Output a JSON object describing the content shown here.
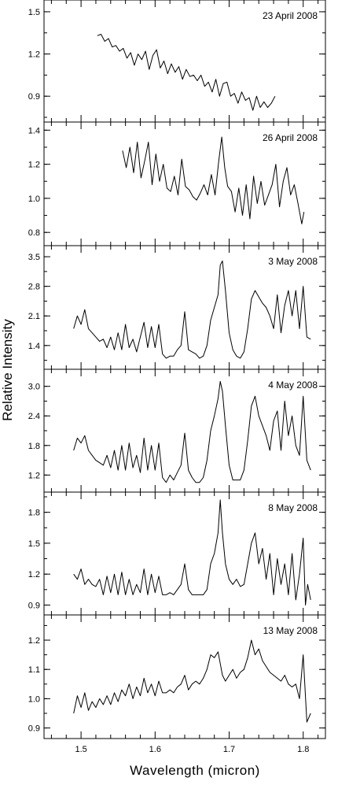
{
  "chart_data": {
    "type": "line",
    "ylabel": "Relative Intensity",
    "xlabel": "Wavelength (micron)",
    "xlim": [
      1.45,
      1.83
    ],
    "x_ticks": [
      "1.5",
      "1.6",
      "1.7",
      "1.8"
    ],
    "x_tick_values": [
      1.5,
      1.6,
      1.7,
      1.8
    ],
    "line_color": "#000000",
    "grid": false,
    "panels": [
      {
        "date": "23 April 2008",
        "ylim": [
          0.75,
          1.55
        ],
        "y_ticks": [
          "0.9",
          "1.2",
          "1.5"
        ],
        "y_tick_values": [
          0.9,
          1.2,
          1.5
        ],
        "x": [
          1.522,
          1.527,
          1.532,
          1.537,
          1.542,
          1.547,
          1.552,
          1.557,
          1.562,
          1.567,
          1.572,
          1.577,
          1.582,
          1.587,
          1.592,
          1.597,
          1.602,
          1.607,
          1.612,
          1.617,
          1.622,
          1.627,
          1.632,
          1.637,
          1.642,
          1.647,
          1.652,
          1.657,
          1.662,
          1.667,
          1.672,
          1.677,
          1.682,
          1.687,
          1.692,
          1.697,
          1.702,
          1.707,
          1.712,
          1.717,
          1.722,
          1.727,
          1.732,
          1.737,
          1.742,
          1.747,
          1.752,
          1.757,
          1.762
        ],
        "y": [
          1.33,
          1.34,
          1.29,
          1.31,
          1.25,
          1.26,
          1.22,
          1.24,
          1.17,
          1.21,
          1.12,
          1.2,
          1.16,
          1.22,
          1.09,
          1.19,
          1.23,
          1.1,
          1.15,
          1.06,
          1.13,
          1.07,
          1.11,
          1.02,
          1.09,
          1.04,
          1.05,
          1.01,
          1.05,
          0.97,
          1.0,
          0.93,
          1.02,
          0.9,
          0.99,
          1.0,
          0.9,
          0.92,
          0.85,
          0.93,
          0.87,
          0.89,
          0.8,
          0.9,
          0.82,
          0.86,
          0.82,
          0.85,
          0.9
        ]
      },
      {
        "date": "26 April 2008",
        "ylim": [
          0.75,
          1.42
        ],
        "y_ticks": [
          "0.8",
          "1.0",
          "1.2",
          "1.4"
        ],
        "y_tick_values": [
          0.8,
          1.0,
          1.2,
          1.4
        ],
        "x": [
          1.556,
          1.561,
          1.566,
          1.571,
          1.576,
          1.581,
          1.586,
          1.591,
          1.596,
          1.601,
          1.606,
          1.611,
          1.616,
          1.621,
          1.626,
          1.631,
          1.636,
          1.641,
          1.646,
          1.651,
          1.656,
          1.661,
          1.666,
          1.671,
          1.676,
          1.681,
          1.686,
          1.69,
          1.694,
          1.698,
          1.703,
          1.708,
          1.713,
          1.718,
          1.723,
          1.728,
          1.733,
          1.738,
          1.743,
          1.748,
          1.753,
          1.758,
          1.763,
          1.768,
          1.773,
          1.778,
          1.783,
          1.788,
          1.793,
          1.798,
          1.801
        ],
        "y": [
          1.28,
          1.18,
          1.3,
          1.15,
          1.33,
          1.12,
          1.22,
          1.33,
          1.08,
          1.26,
          1.1,
          1.2,
          1.06,
          1.04,
          1.13,
          1.02,
          1.23,
          1.07,
          1.05,
          1.01,
          0.99,
          1.03,
          1.08,
          1.02,
          1.14,
          1.02,
          1.22,
          1.36,
          1.18,
          1.07,
          1.04,
          0.92,
          1.06,
          0.9,
          1.08,
          0.88,
          1.13,
          0.97,
          1.1,
          0.96,
          1.02,
          1.08,
          1.2,
          0.95,
          1.1,
          1.18,
          1.02,
          1.08,
          0.97,
          0.85,
          0.92
        ]
      },
      {
        "date": "3 May 2008",
        "ylim": [
          0.95,
          3.65
        ],
        "y_ticks": [
          "1.4",
          "2.1",
          "2.8",
          "3.5"
        ],
        "y_tick_values": [
          1.4,
          2.1,
          2.8,
          3.5
        ],
        "x": [
          1.49,
          1.495,
          1.5,
          1.505,
          1.51,
          1.515,
          1.52,
          1.525,
          1.53,
          1.535,
          1.54,
          1.545,
          1.55,
          1.555,
          1.56,
          1.565,
          1.57,
          1.575,
          1.58,
          1.585,
          1.59,
          1.595,
          1.6,
          1.605,
          1.61,
          1.615,
          1.62,
          1.625,
          1.63,
          1.635,
          1.64,
          1.645,
          1.65,
          1.655,
          1.66,
          1.665,
          1.67,
          1.675,
          1.68,
          1.685,
          1.688,
          1.691,
          1.695,
          1.7,
          1.705,
          1.71,
          1.715,
          1.72,
          1.725,
          1.73,
          1.735,
          1.74,
          1.745,
          1.75,
          1.755,
          1.76,
          1.765,
          1.77,
          1.775,
          1.78,
          1.785,
          1.79,
          1.795,
          1.8,
          1.805,
          1.81
        ],
        "y": [
          1.8,
          2.1,
          1.9,
          2.25,
          1.8,
          1.7,
          1.6,
          1.5,
          1.55,
          1.35,
          1.6,
          1.3,
          1.7,
          1.3,
          1.9,
          1.35,
          1.55,
          1.25,
          1.6,
          1.95,
          1.35,
          1.85,
          1.35,
          1.9,
          1.2,
          1.1,
          1.15,
          1.15,
          1.3,
          1.4,
          2.2,
          1.3,
          1.25,
          1.2,
          1.1,
          1.15,
          1.4,
          2.0,
          2.3,
          2.6,
          3.3,
          3.4,
          2.7,
          1.7,
          1.3,
          1.15,
          1.1,
          1.25,
          1.8,
          2.5,
          2.7,
          2.55,
          2.4,
          2.3,
          2.1,
          1.8,
          2.6,
          1.7,
          2.35,
          2.7,
          2.1,
          2.7,
          1.8,
          2.8,
          1.6,
          1.55
        ]
      },
      {
        "date": "4 May 2008",
        "ylim": [
          0.95,
          3.25
        ],
        "y_ticks": [
          "1.2",
          "1.8",
          "2.4",
          "3.0"
        ],
        "y_tick_values": [
          1.2,
          1.8,
          2.4,
          3.0
        ],
        "x": [
          1.49,
          1.495,
          1.5,
          1.505,
          1.51,
          1.515,
          1.52,
          1.525,
          1.53,
          1.535,
          1.54,
          1.545,
          1.55,
          1.555,
          1.56,
          1.565,
          1.57,
          1.575,
          1.58,
          1.585,
          1.59,
          1.595,
          1.6,
          1.605,
          1.61,
          1.615,
          1.62,
          1.625,
          1.63,
          1.635,
          1.64,
          1.645,
          1.65,
          1.655,
          1.66,
          1.665,
          1.67,
          1.675,
          1.68,
          1.685,
          1.688,
          1.691,
          1.695,
          1.7,
          1.705,
          1.71,
          1.715,
          1.72,
          1.725,
          1.73,
          1.735,
          1.74,
          1.745,
          1.75,
          1.755,
          1.76,
          1.765,
          1.77,
          1.775,
          1.78,
          1.785,
          1.79,
          1.795,
          1.8,
          1.805,
          1.81
        ],
        "y": [
          1.7,
          1.95,
          1.85,
          2.0,
          1.7,
          1.6,
          1.5,
          1.45,
          1.4,
          1.6,
          1.35,
          1.7,
          1.3,
          1.8,
          1.3,
          1.85,
          1.35,
          1.6,
          1.25,
          1.95,
          1.3,
          1.8,
          1.3,
          1.85,
          1.15,
          1.05,
          1.2,
          1.1,
          1.25,
          1.4,
          2.05,
          1.3,
          1.15,
          1.05,
          1.05,
          1.15,
          1.5,
          2.1,
          2.4,
          2.75,
          3.1,
          2.9,
          2.2,
          1.4,
          1.1,
          1.1,
          1.1,
          1.3,
          1.9,
          2.6,
          2.8,
          2.4,
          2.2,
          2.0,
          1.7,
          2.3,
          2.5,
          1.7,
          2.7,
          2.0,
          2.4,
          1.8,
          1.6,
          2.8,
          1.5,
          1.3
        ]
      },
      {
        "date": "8 May 2008",
        "ylim": [
          0.85,
          1.95
        ],
        "y_ticks": [
          "0.9",
          "1.2",
          "1.5",
          "1.8"
        ],
        "y_tick_values": [
          0.9,
          1.2,
          1.5,
          1.8
        ],
        "x": [
          1.49,
          1.495,
          1.5,
          1.505,
          1.51,
          1.515,
          1.52,
          1.525,
          1.53,
          1.535,
          1.54,
          1.545,
          1.55,
          1.555,
          1.56,
          1.565,
          1.57,
          1.575,
          1.58,
          1.585,
          1.59,
          1.595,
          1.6,
          1.605,
          1.61,
          1.615,
          1.62,
          1.625,
          1.63,
          1.635,
          1.64,
          1.645,
          1.65,
          1.655,
          1.66,
          1.665,
          1.67,
          1.675,
          1.68,
          1.685,
          1.688,
          1.691,
          1.695,
          1.7,
          1.705,
          1.71,
          1.715,
          1.72,
          1.725,
          1.73,
          1.735,
          1.74,
          1.745,
          1.75,
          1.755,
          1.76,
          1.765,
          1.77,
          1.775,
          1.78,
          1.785,
          1.79,
          1.795,
          1.8,
          1.803,
          1.806,
          1.81
        ],
        "y": [
          1.2,
          1.15,
          1.25,
          1.1,
          1.15,
          1.1,
          1.08,
          1.15,
          1.0,
          1.18,
          1.02,
          1.2,
          1.0,
          1.22,
          1.0,
          1.15,
          1.0,
          1.1,
          1.02,
          1.25,
          1.0,
          1.2,
          1.02,
          1.18,
          1.0,
          1.0,
          1.02,
          1.0,
          1.05,
          1.1,
          1.3,
          1.05,
          1.0,
          1.0,
          1.0,
          1.0,
          1.05,
          1.3,
          1.4,
          1.6,
          1.92,
          1.6,
          1.3,
          1.15,
          1.1,
          1.15,
          1.08,
          1.1,
          1.3,
          1.5,
          1.6,
          1.3,
          1.45,
          1.15,
          1.4,
          1.0,
          1.35,
          1.1,
          1.3,
          1.0,
          1.4,
          0.95,
          1.2,
          1.55,
          0.9,
          1.1,
          0.95
        ]
      },
      {
        "date": "13 May 2008",
        "ylim": [
          0.88,
          1.27
        ],
        "y_ticks": [
          "0.9",
          "1.0",
          "1.1",
          "1.2"
        ],
        "y_tick_values": [
          0.9,
          1.0,
          1.1,
          1.2
        ],
        "x": [
          1.49,
          1.495,
          1.5,
          1.505,
          1.51,
          1.515,
          1.52,
          1.525,
          1.53,
          1.535,
          1.54,
          1.545,
          1.55,
          1.555,
          1.56,
          1.565,
          1.57,
          1.575,
          1.58,
          1.585,
          1.59,
          1.595,
          1.6,
          1.605,
          1.61,
          1.615,
          1.62,
          1.625,
          1.63,
          1.635,
          1.64,
          1.645,
          1.65,
          1.655,
          1.66,
          1.665,
          1.67,
          1.675,
          1.68,
          1.685,
          1.688,
          1.691,
          1.695,
          1.7,
          1.705,
          1.71,
          1.715,
          1.72,
          1.725,
          1.73,
          1.735,
          1.74,
          1.745,
          1.75,
          1.755,
          1.76,
          1.765,
          1.77,
          1.775,
          1.78,
          1.785,
          1.79,
          1.795,
          1.8,
          1.805,
          1.81
        ],
        "y": [
          0.95,
          1.01,
          0.97,
          1.02,
          0.96,
          0.99,
          0.97,
          1.0,
          0.98,
          1.01,
          0.98,
          1.02,
          0.99,
          1.03,
          1.01,
          1.05,
          1.0,
          1.04,
          1.01,
          1.07,
          1.02,
          1.05,
          1.01,
          1.06,
          1.02,
          1.02,
          1.03,
          1.02,
          1.04,
          1.05,
          1.08,
          1.03,
          1.05,
          1.06,
          1.05,
          1.07,
          1.1,
          1.15,
          1.14,
          1.16,
          1.12,
          1.08,
          1.06,
          1.08,
          1.1,
          1.07,
          1.09,
          1.1,
          1.14,
          1.2,
          1.15,
          1.17,
          1.13,
          1.11,
          1.09,
          1.08,
          1.07,
          1.06,
          1.08,
          1.05,
          1.04,
          1.05,
          1.0,
          1.15,
          0.92,
          0.95
        ]
      }
    ]
  }
}
